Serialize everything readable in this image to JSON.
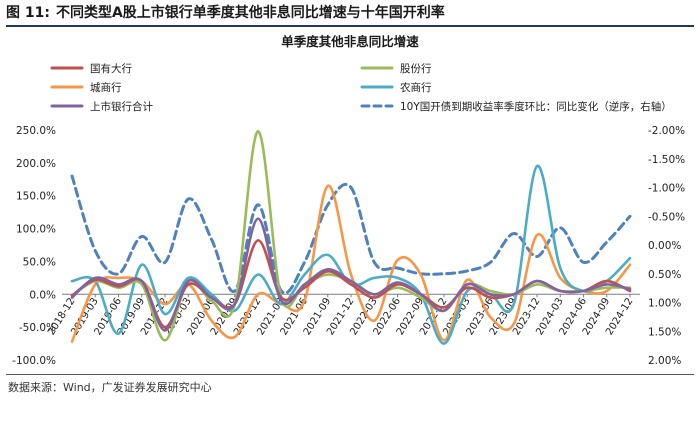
{
  "figure": {
    "number": "图 11:",
    "title": "不同类型A股上市银行单季度其他非息同比增速与十年国开利率",
    "source": "数据来源：Wind，广发证券发展研究中心"
  },
  "colors": {
    "state_owned": "#c0504d",
    "joint_stock": "#9bbb59",
    "city_commercial": "#f79646",
    "rural_commercial": "#4bacc6",
    "all_listed": "#8064a2",
    "bond_yield": "#4f81bd"
  },
  "chart_data": {
    "type": "line",
    "title": "单季度其他非息同比增速",
    "x": [
      "2018-12",
      "2019-03",
      "2019-06",
      "2019-09",
      "2019-12",
      "2020-03",
      "2020-06",
      "2020-09",
      "2020-12",
      "2021-03",
      "2021-06",
      "2021-09",
      "2021-12",
      "2022-03",
      "2022-06",
      "2022-09",
      "2022-12",
      "2023-03",
      "2023-06",
      "2023-09",
      "2023-12",
      "2024-03",
      "2024-06",
      "2024-09",
      "2024-12"
    ],
    "y_left": {
      "ticks": [
        "250.0%",
        "200.0%",
        "150.0%",
        "100.0%",
        "50.0%",
        "0.0%",
        "-50.0%",
        "-100.0%"
      ],
      "ylim": [
        -100,
        250
      ],
      "unit": "%"
    },
    "y_right": {
      "ticks": [
        "-2.00%",
        "-1.50%",
        "-1.00%",
        "-0.50%",
        "0.00%",
        "0.50%",
        "1.00%",
        "1.50%",
        "2.00%"
      ],
      "ylim": [
        -2.0,
        2.0
      ],
      "inverted": true,
      "unit": "%"
    },
    "grid": false,
    "legend_position": "top",
    "series": [
      {
        "key": "state_owned",
        "name": "国有大行",
        "axis": "left",
        "style": "solid",
        "values": [
          -2,
          22,
          12,
          20,
          -50,
          15,
          -5,
          -15,
          82,
          -5,
          10,
          35,
          15,
          -5,
          15,
          0,
          -20,
          10,
          -5,
          0,
          20,
          5,
          5,
          20,
          5
        ]
      },
      {
        "key": "joint_stock",
        "name": "股份行",
        "axis": "left",
        "style": "solid",
        "values": [
          -2,
          20,
          10,
          15,
          -70,
          20,
          -10,
          -15,
          248,
          -5,
          15,
          30,
          20,
          0,
          10,
          -5,
          -25,
          15,
          5,
          0,
          15,
          5,
          5,
          10,
          10
        ]
      },
      {
        "key": "city_commercial",
        "name": "城商行",
        "axis": "left",
        "style": "solid",
        "values": [
          -72,
          15,
          25,
          20,
          -15,
          15,
          -40,
          -65,
          0,
          -15,
          -10,
          165,
          30,
          -40,
          52,
          30,
          -70,
          22,
          -35,
          -45,
          90,
          25,
          5,
          5,
          45
        ]
      },
      {
        "key": "rural_commercial",
        "name": "农商行",
        "axis": "left",
        "style": "solid",
        "values": [
          20,
          20,
          -60,
          45,
          -30,
          25,
          0,
          -25,
          30,
          -15,
          30,
          60,
          15,
          25,
          25,
          0,
          -75,
          5,
          0,
          -15,
          195,
          40,
          5,
          20,
          55
        ]
      },
      {
        "key": "all_listed",
        "name": "上市银行合计",
        "axis": "left",
        "style": "solid",
        "values": [
          -5,
          25,
          15,
          20,
          -55,
          20,
          -5,
          -15,
          115,
          -10,
          15,
          38,
          20,
          0,
          18,
          0,
          -25,
          15,
          0,
          0,
          20,
          5,
          5,
          15,
          8
        ]
      },
      {
        "key": "bond_yield",
        "name": "10Y国开债到期收益率季度环比：同比变化（逆序，右轴）",
        "axis": "right",
        "style": "dashed",
        "values": [
          -1.2,
          0.1,
          0.5,
          -0.15,
          0.3,
          -0.8,
          -0.1,
          0.8,
          -0.7,
          0.8,
          0.3,
          -0.7,
          -1.0,
          0.3,
          0.4,
          0.5,
          0.5,
          0.45,
          0.3,
          -0.2,
          0.2,
          -0.3,
          0.3,
          -0.05,
          -0.5
        ]
      }
    ]
  }
}
